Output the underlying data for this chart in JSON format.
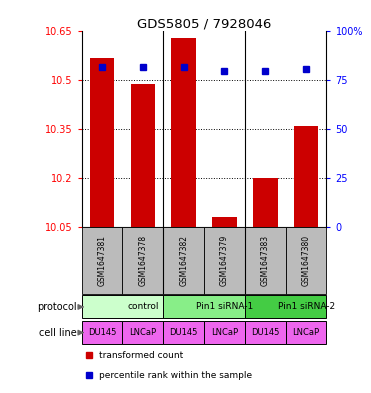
{
  "title": "GDS5805 / 7928046",
  "samples": [
    "GSM1647381",
    "GSM1647378",
    "GSM1647382",
    "GSM1647379",
    "GSM1647383",
    "GSM1647380"
  ],
  "red_values": [
    10.57,
    10.49,
    10.63,
    10.08,
    10.2,
    10.36
  ],
  "blue_values": [
    82,
    82,
    82,
    80,
    80,
    81
  ],
  "ylim_left": [
    10.05,
    10.65
  ],
  "ylim_right": [
    0,
    100
  ],
  "yticks_left": [
    10.05,
    10.2,
    10.35,
    10.5,
    10.65
  ],
  "yticks_right": [
    0,
    25,
    50,
    75,
    100
  ],
  "ytick_labels_left": [
    "10.05",
    "10.2",
    "10.35",
    "10.5",
    "10.65"
  ],
  "ytick_labels_right": [
    "0",
    "25",
    "50",
    "75",
    "100%"
  ],
  "protocol_groups": [
    {
      "label": "control",
      "start": 0,
      "end": 2,
      "color": "#ccffcc"
    },
    {
      "label": "Pin1 siRNA-1",
      "start": 2,
      "end": 4,
      "color": "#88ee88"
    },
    {
      "label": "Pin1 siRNA-2",
      "start": 4,
      "end": 6,
      "color": "#44cc44"
    }
  ],
  "cell_lines": [
    {
      "label": "DU145",
      "color": "#ee66ee"
    },
    {
      "label": "LNCaP",
      "color": "#ee66ee"
    },
    {
      "label": "DU145",
      "color": "#ee66ee"
    },
    {
      "label": "LNCaP",
      "color": "#ee66ee"
    },
    {
      "label": "DU145",
      "color": "#ee66ee"
    },
    {
      "label": "LNCaP",
      "color": "#ee66ee"
    }
  ],
  "bar_color": "#cc0000",
  "square_color": "#0000cc",
  "bar_width": 0.6,
  "legend_red_label": "transformed count",
  "legend_blue_label": "percentile rank within the sample",
  "protocol_label": "protocol",
  "cellline_label": "cell line",
  "sample_bg_color": "#bbbbbb",
  "grid_color": "#000000",
  "grid_linestyle": "dotted",
  "grid_linewidth": 0.7,
  "sep_linecolor": "#000000",
  "sep_linewidth": 0.8
}
